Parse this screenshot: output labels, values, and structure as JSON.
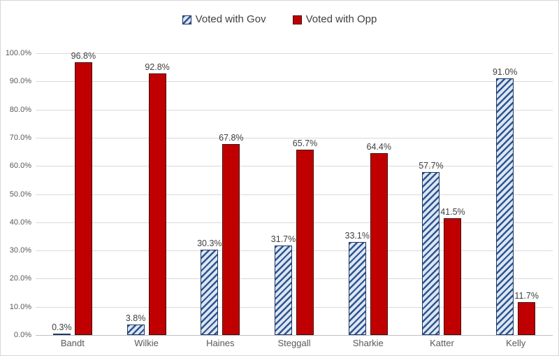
{
  "chart_data": {
    "type": "bar",
    "title": "",
    "xlabel": "",
    "ylabel": "",
    "categories": [
      "Bandt",
      "Wilkie",
      "Haines",
      "Steggall",
      "Sharkie",
      "Katter",
      "Kelly"
    ],
    "series": [
      {
        "name": "Voted with Gov",
        "style": "hatched-upward-diagonal",
        "values": [
          0.3,
          3.8,
          30.3,
          31.7,
          33.1,
          57.7,
          91.0
        ],
        "labels": [
          "0.3%",
          "3.8%",
          "30.3%",
          "31.7%",
          "33.1%",
          "57.7%",
          "91.0%"
        ],
        "fill": "#dce6f2",
        "stripe": "#2e5490",
        "border": "#1f3864"
      },
      {
        "name": "Voted with Opp",
        "style": "solid",
        "values": [
          96.8,
          92.8,
          67.8,
          65.7,
          64.4,
          41.5,
          11.7
        ],
        "labels": [
          "96.8%",
          "92.8%",
          "67.8%",
          "65.7%",
          "64.4%",
          "41.5%",
          "11.7%"
        ],
        "fill": "#c00000",
        "border": "#3f0d0d"
      }
    ],
    "y_axis": {
      "min": 0,
      "max": 100,
      "step": 10,
      "tick_labels": [
        "0.0%",
        "10.0%",
        "20.0%",
        "30.0%",
        "40.0%",
        "50.0%",
        "60.0%",
        "70.0%",
        "80.0%",
        "90.0%",
        "100.0%"
      ]
    },
    "legend": {
      "position": "top-center"
    },
    "grid": true,
    "colors": {
      "background": "#ffffff",
      "chart_border": "#d6d6d6",
      "gridline": "#d9d9d9",
      "axis_line": "#bfbfbf",
      "tick_text": "#595959",
      "value_text": "#404040",
      "legend_text": "#404040"
    }
  }
}
